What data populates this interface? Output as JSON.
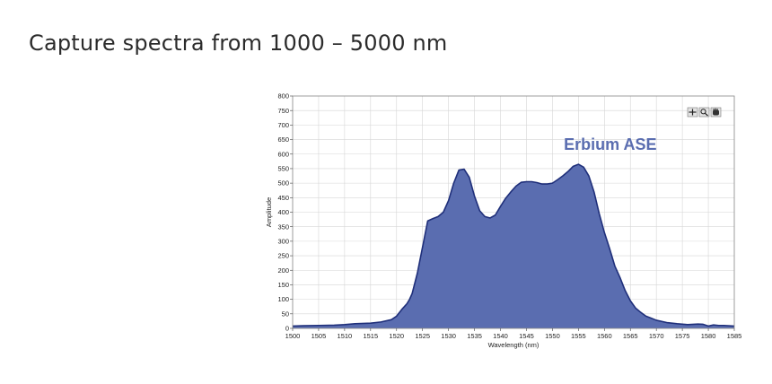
{
  "headline": "Capture spectra from 1000 – 5000 nm",
  "chart_data": {
    "type": "area",
    "title": "",
    "xlabel": "Wavelength (nm)",
    "ylabel": "Amplitude",
    "xlim": [
      1500,
      1585
    ],
    "ylim": [
      0,
      800
    ],
    "x_ticks": [
      1500,
      1505,
      1510,
      1515,
      1520,
      1525,
      1530,
      1535,
      1540,
      1545,
      1550,
      1555,
      1560,
      1565,
      1570,
      1575,
      1580,
      1585
    ],
    "y_ticks": [
      0,
      50,
      100,
      150,
      200,
      250,
      300,
      350,
      400,
      450,
      500,
      550,
      600,
      650,
      700,
      750,
      800
    ],
    "grid": true,
    "annotation": "Erbium ASE",
    "colors": {
      "fill": "#5a6db0",
      "line": "#1f2f7a",
      "grid": "#d6d6d6"
    },
    "toolbar_icons": [
      "crosshair-icon",
      "zoom-icon",
      "pan-icon"
    ],
    "series": [
      {
        "x": [
          1500,
          1502,
          1505,
          1508,
          1510,
          1512,
          1515,
          1517,
          1519,
          1520,
          1521,
          1522,
          1522.5,
          1523,
          1524,
          1525,
          1526,
          1527,
          1528,
          1529,
          1530,
          1531,
          1532,
          1533,
          1534,
          1535,
          1536,
          1537,
          1538,
          1539,
          1540,
          1541,
          1542,
          1543,
          1544,
          1545,
          1546,
          1547,
          1548,
          1549,
          1550,
          1551,
          1552,
          1553,
          1554,
          1555,
          1556,
          1557,
          1558,
          1559,
          1560,
          1561,
          1562,
          1563,
          1564,
          1565,
          1566,
          1567,
          1568,
          1569,
          1570,
          1572,
          1574,
          1576,
          1578,
          1579,
          1580,
          1581,
          1582,
          1583,
          1585
        ],
        "y": [
          8,
          9,
          10,
          11,
          13,
          16,
          18,
          22,
          30,
          42,
          65,
          85,
          100,
          120,
          190,
          280,
          370,
          378,
          385,
          400,
          440,
          500,
          545,
          548,
          520,
          455,
          405,
          385,
          380,
          390,
          420,
          448,
          470,
          490,
          503,
          505,
          505,
          502,
          497,
          497,
          500,
          512,
          525,
          540,
          558,
          565,
          555,
          525,
          470,
          395,
          330,
          275,
          215,
          175,
          130,
          95,
          70,
          55,
          42,
          35,
          28,
          20,
          16,
          13,
          15,
          14,
          8,
          12,
          10,
          10,
          8
        ]
      }
    ]
  }
}
